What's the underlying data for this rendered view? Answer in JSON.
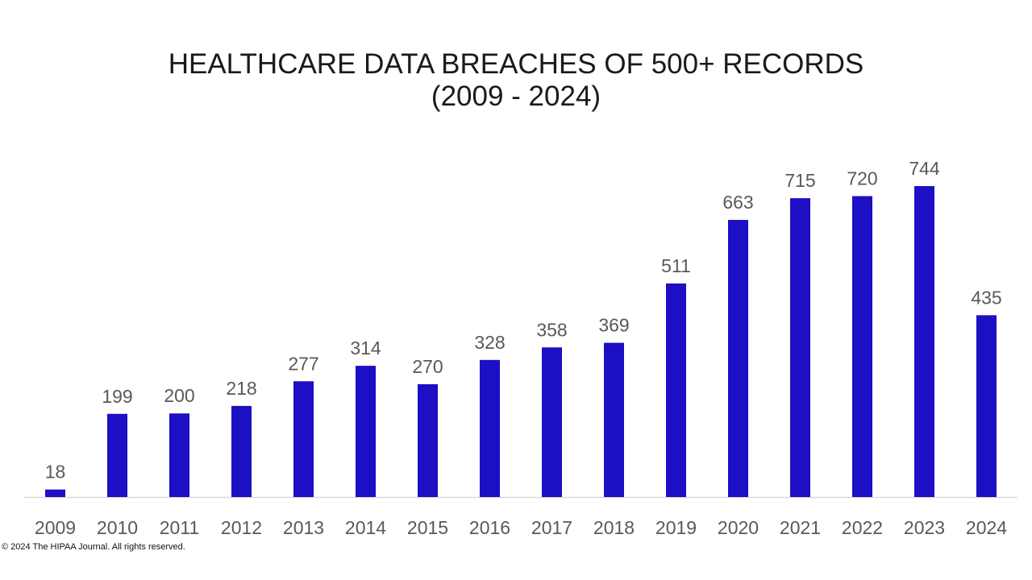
{
  "chart_data": {
    "type": "bar",
    "title_lines": [
      "HEALTHCARE DATA BREACHES OF 500+ RECORDS",
      "(2009 - 2024)"
    ],
    "categories": [
      "2009",
      "2010",
      "2011",
      "2012",
      "2013",
      "2014",
      "2015",
      "2016",
      "2017",
      "2018",
      "2019",
      "2020",
      "2021",
      "2022",
      "2023",
      "2024"
    ],
    "series": [
      {
        "values": [
          18,
          199,
          200,
          218,
          277,
          314,
          270,
          328,
          358,
          369,
          511,
          663,
          715,
          720,
          744,
          435
        ]
      }
    ],
    "ylim": [
      0,
      744
    ],
    "grid": false,
    "data_labels": true,
    "colors": {
      "bar": "#1c0fc4",
      "label": "#595959",
      "axis": "#d9d9d9"
    }
  },
  "footer": {
    "copyright": "© 2024 The HIPAA Journal. All rights reserved."
  }
}
